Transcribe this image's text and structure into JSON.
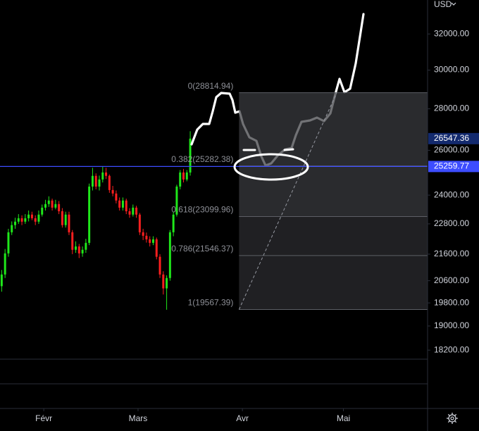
{
  "chart_data": {
    "type": "candlestick",
    "log_scale": true,
    "grid": false,
    "currency": "USD",
    "xlim": [
      0,
      127
    ],
    "ylim": [
      16400,
      34000
    ],
    "xticks": [
      {
        "value": 13,
        "label": "Févr"
      },
      {
        "value": 41,
        "label": "Mars"
      },
      {
        "value": 72,
        "label": "Avr"
      },
      {
        "value": 102,
        "label": "Mai"
      }
    ],
    "yticks": [
      {
        "value": 32000,
        "label": "32000.00"
      },
      {
        "value": 30000,
        "label": "30000.00"
      },
      {
        "value": 28000,
        "label": "28000.00"
      },
      {
        "value": 26000,
        "label": "26000.00"
      },
      {
        "value": 24000,
        "label": "24000.00"
      },
      {
        "value": 22800,
        "label": "22800.00"
      },
      {
        "value": 21600,
        "label": "21600.00"
      },
      {
        "value": 20600,
        "label": "20600.00"
      },
      {
        "value": 19800,
        "label": "19800.00"
      },
      {
        "value": 19000,
        "label": "19000.00"
      },
      {
        "value": 18200,
        "label": "18200.00"
      }
    ],
    "series": {
      "up_color": "#1fe81a",
      "down_color": "#ff1f1f",
      "open": [
        20400,
        20830,
        21630,
        22460,
        22750,
        22890,
        23030,
        22890,
        23030,
        23180,
        23030,
        22890,
        23180,
        23470,
        23620,
        23770,
        23470,
        23620,
        23320,
        22750,
        23180,
        22460,
        21770,
        21900,
        21630,
        21770,
        22040,
        24370,
        24840,
        24370,
        24680,
        24990,
        24840,
        24220,
        24070,
        23770,
        23470,
        23770,
        23320,
        23180,
        23470,
        23180,
        22460,
        22320,
        22180,
        22040,
        22180,
        21500,
        20830,
        20320,
        20700,
        22460,
        23180,
        24370,
        24990,
        24680,
        24990
      ],
      "high": [
        21000,
        21800,
        22600,
        22900,
        23050,
        23200,
        23150,
        23200,
        23350,
        23300,
        23150,
        23350,
        23600,
        23800,
        23950,
        23850,
        23800,
        23750,
        23450,
        23300,
        23300,
        22550,
        22100,
        22000,
        21900,
        22200,
        24500,
        25200,
        24950,
        24850,
        25250,
        25200,
        24900,
        24400,
        24200,
        23900,
        23900,
        23850,
        23450,
        23600,
        23550,
        23250,
        22600,
        22450,
        22300,
        22300,
        22250,
        21600,
        20950,
        20800,
        22550,
        23300,
        24450,
        25100,
        25150,
        25100,
        26900
      ],
      "low": [
        20200,
        20700,
        21500,
        22350,
        22600,
        22800,
        22750,
        22800,
        22900,
        22950,
        22750,
        22800,
        23100,
        23350,
        23500,
        23350,
        23400,
        23200,
        22650,
        22650,
        22350,
        21600,
        21650,
        21450,
        21500,
        21650,
        21950,
        24200,
        24250,
        24200,
        24550,
        24700,
        24100,
        23950,
        23650,
        23350,
        23350,
        23200,
        23050,
        23100,
        23050,
        22350,
        22150,
        22050,
        21900,
        21950,
        21400,
        20700,
        20100,
        19560,
        20600,
        22300,
        23100,
        24250,
        24550,
        24600,
        24850
      ],
      "close": [
        20830,
        21630,
        22460,
        22750,
        22890,
        23030,
        22890,
        23030,
        23180,
        23030,
        22890,
        23180,
        23470,
        23620,
        23770,
        23470,
        23620,
        23320,
        22750,
        23180,
        22460,
        21770,
        21900,
        21630,
        21770,
        22040,
        24370,
        24840,
        24370,
        24680,
        24990,
        24840,
        24220,
        24070,
        23770,
        23470,
        23770,
        23320,
        23180,
        23470,
        23180,
        22460,
        22320,
        22180,
        22040,
        22180,
        21500,
        20830,
        20320,
        20700,
        22460,
        23180,
        24370,
        24990,
        24680,
        24990,
        26547.36
      ]
    },
    "price_line": {
      "value": 25259.77,
      "color": "#3d4dff"
    },
    "fibonacci": {
      "x_start": 71,
      "x_end": 100,
      "levels": [
        {
          "value": 28814.94,
          "label": "0(28814.94)"
        },
        {
          "value": 25282.38,
          "label": "0.382(25282.38)"
        },
        {
          "value": 23099.96,
          "label": "0.618(23099.96)"
        },
        {
          "value": 21546.37,
          "label": "0.786(21546.37)"
        },
        {
          "value": 19567.39,
          "label": "1(19567.39)"
        }
      ]
    }
  }
}
